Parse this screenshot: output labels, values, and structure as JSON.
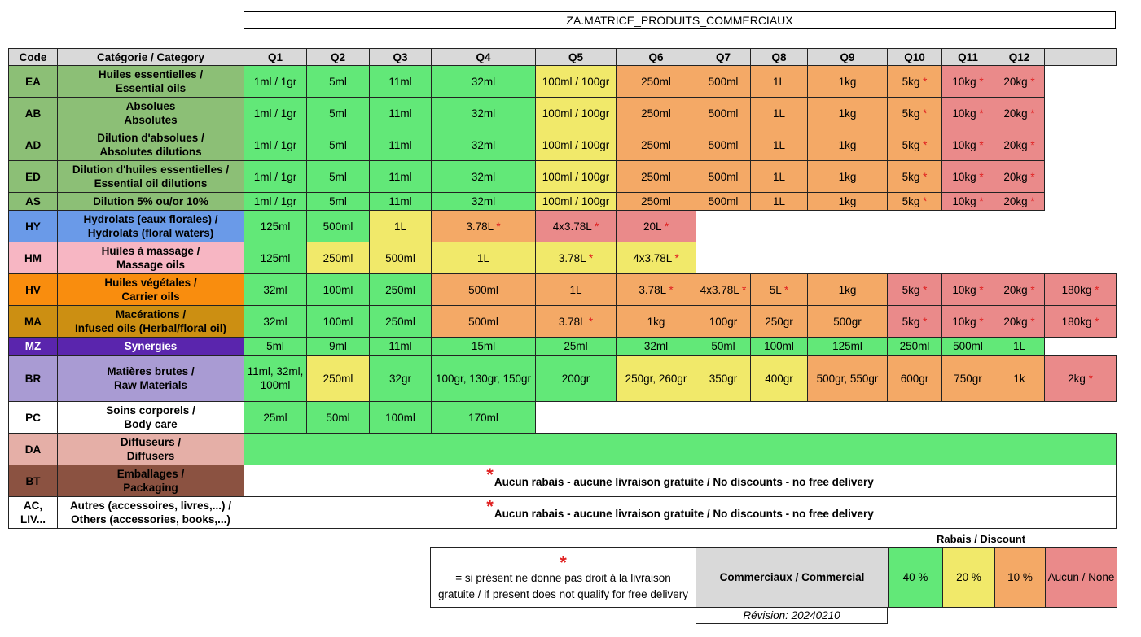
{
  "title": "ZA.MATRICE_PRODUITS_COMMERCIAUX",
  "colors": {
    "green": "#62e878",
    "yellow": "#f1e96a",
    "orange": "#f4a966",
    "red": "#ea8a8a",
    "header_gray": "#d9d9d9",
    "asterisk": "#e02020"
  },
  "headers": [
    "Code",
    "Catégorie / Category",
    "Q1",
    "Q2",
    "Q3",
    "Q4",
    "Q5",
    "Q6",
    "Q7",
    "Q8",
    "Q9",
    "Q10",
    "Q11",
    "Q12",
    ""
  ],
  "rows": [
    {
      "code": "EA",
      "code_bg": "#8cbf76",
      "cat_lines": [
        "Huiles essentielles /",
        "Essential oils"
      ],
      "cat_bg": "#8cbf76",
      "cells": [
        [
          "1ml / 1gr",
          "G"
        ],
        [
          "5ml",
          "G"
        ],
        [
          "11ml",
          "G"
        ],
        [
          "32ml",
          "G"
        ],
        [
          "100ml / 100gr",
          "Y"
        ],
        [
          "250ml",
          "O"
        ],
        [
          "500ml",
          "O"
        ],
        [
          "1L",
          "O"
        ],
        [
          "1kg",
          "O"
        ],
        [
          "5kg *",
          "O"
        ],
        [
          "10kg *",
          "R"
        ],
        [
          "20kg *",
          "R"
        ]
      ]
    },
    {
      "code": "AB",
      "code_bg": "#8cbf76",
      "cat_lines": [
        "Absolues",
        "Absolutes"
      ],
      "cat_bg": "#8cbf76",
      "cells": [
        [
          "1ml / 1gr",
          "G"
        ],
        [
          "5ml",
          "G"
        ],
        [
          "11ml",
          "G"
        ],
        [
          "32ml",
          "G"
        ],
        [
          "100ml / 100gr",
          "Y"
        ],
        [
          "250ml",
          "O"
        ],
        [
          "500ml",
          "O"
        ],
        [
          "1L",
          "O"
        ],
        [
          "1kg",
          "O"
        ],
        [
          "5kg *",
          "O"
        ],
        [
          "10kg *",
          "R"
        ],
        [
          "20kg *",
          "R"
        ]
      ]
    },
    {
      "code": "AD",
      "code_bg": "#8cbf76",
      "cat_lines": [
        "Dilution d'absolues /",
        "Absolutes dilutions"
      ],
      "cat_bg": "#8cbf76",
      "cells": [
        [
          "1ml / 1gr",
          "G"
        ],
        [
          "5ml",
          "G"
        ],
        [
          "11ml",
          "G"
        ],
        [
          "32ml",
          "G"
        ],
        [
          "100ml / 100gr",
          "Y"
        ],
        [
          "250ml",
          "O"
        ],
        [
          "500ml",
          "O"
        ],
        [
          "1L",
          "O"
        ],
        [
          "1kg",
          "O"
        ],
        [
          "5kg *",
          "O"
        ],
        [
          "10kg *",
          "R"
        ],
        [
          "20kg *",
          "R"
        ]
      ]
    },
    {
      "code": "ED",
      "code_bg": "#8cbf76",
      "cat_lines": [
        "Dilution d'huiles essentielles /",
        "Essential oil dilutions"
      ],
      "cat_bg": "#8cbf76",
      "cells": [
        [
          "1ml / 1gr",
          "G"
        ],
        [
          "5ml",
          "G"
        ],
        [
          "11ml",
          "G"
        ],
        [
          "32ml",
          "G"
        ],
        [
          "100ml / 100gr",
          "Y"
        ],
        [
          "250ml",
          "O"
        ],
        [
          "500ml",
          "O"
        ],
        [
          "1L",
          "O"
        ],
        [
          "1kg",
          "O"
        ],
        [
          "5kg *",
          "O"
        ],
        [
          "10kg *",
          "R"
        ],
        [
          "20kg *",
          "R"
        ]
      ]
    },
    {
      "code": "AS",
      "code_bg": "#8cbf76",
      "cat_lines": [
        "Dilution 5% ou/or 10%"
      ],
      "cat_bg": "#8cbf76",
      "cells": [
        [
          "1ml / 1gr",
          "G"
        ],
        [
          "5ml",
          "G"
        ],
        [
          "11ml",
          "G"
        ],
        [
          "32ml",
          "G"
        ],
        [
          "100ml / 100gr",
          "Y"
        ],
        [
          "250ml",
          "O"
        ],
        [
          "500ml",
          "O"
        ],
        [
          "1L",
          "O"
        ],
        [
          "1kg",
          "O"
        ],
        [
          "5kg *",
          "O"
        ],
        [
          "10kg *",
          "R"
        ],
        [
          "20kg *",
          "R"
        ]
      ]
    },
    {
      "code": "HY",
      "code_bg": "#6a9ae8",
      "cat_lines": [
        "Hydrolats (eaux florales) /",
        "Hydrolats (floral waters)"
      ],
      "cat_bg": "#6a9ae8",
      "cells": [
        [
          "125ml",
          "G"
        ],
        [
          "500ml",
          "G"
        ],
        [
          "1L",
          "Y"
        ],
        [
          "3.78L *",
          "O"
        ],
        [
          "4x3.78L *",
          "R"
        ],
        [
          "20L *",
          "R"
        ]
      ]
    },
    {
      "code": "HM",
      "code_bg": "#f7b6c3",
      "cat_lines": [
        "Huiles à massage /",
        "Massage oils"
      ],
      "cat_bg": "#f7b6c3",
      "cells": [
        [
          "125ml",
          "G"
        ],
        [
          "250ml",
          "Y"
        ],
        [
          "500ml",
          "Y"
        ],
        [
          "1L",
          "Y"
        ],
        [
          "3.78L *",
          "Y"
        ],
        [
          "4x3.78L *",
          "Y"
        ]
      ]
    },
    {
      "code": "HV",
      "code_bg": "#f98d0e",
      "cat_lines": [
        "Huiles végétales /",
        "Carrier oils"
      ],
      "cat_bg": "#f98d0e",
      "cells": [
        [
          "32ml",
          "G"
        ],
        [
          "100ml",
          "G"
        ],
        [
          "250ml",
          "G"
        ],
        [
          "500ml",
          "O"
        ],
        [
          "1L",
          "O"
        ],
        [
          "3.78L *",
          "O"
        ],
        [
          "4x3.78L *",
          "O"
        ],
        [
          "5L *",
          "O"
        ],
        [
          "1kg",
          "O"
        ],
        [
          "5kg *",
          "R"
        ],
        [
          "10kg *",
          "R"
        ],
        [
          "20kg *",
          "R"
        ],
        [
          "180kg *",
          "R"
        ]
      ]
    },
    {
      "code": "MA",
      "code_bg": "#cc8f12",
      "cat_lines": [
        "Macérations /",
        "Infused oils (Herbal/floral oil)"
      ],
      "cat_bg": "#cc8f12",
      "cells": [
        [
          "32ml",
          "G"
        ],
        [
          "100ml",
          "G"
        ],
        [
          "250ml",
          "G"
        ],
        [
          "500ml",
          "O"
        ],
        [
          "3.78L *",
          "O"
        ],
        [
          "1kg",
          "O"
        ],
        [
          "100gr",
          "O"
        ],
        [
          "250gr",
          "O"
        ],
        [
          "500gr",
          "O"
        ],
        [
          "5kg *",
          "R"
        ],
        [
          "10kg *",
          "R"
        ],
        [
          "20kg *",
          "R"
        ],
        [
          "180kg *",
          "R"
        ]
      ]
    },
    {
      "code": "MZ",
      "code_bg": "#5a25ad",
      "cat_lines": [
        "Synergies"
      ],
      "cat_bg": "#5a25ad",
      "light": true,
      "cells": [
        [
          "5ml",
          "G"
        ],
        [
          "9ml",
          "G"
        ],
        [
          "11ml",
          "G"
        ],
        [
          "15ml",
          "G"
        ],
        [
          "25ml",
          "G"
        ],
        [
          "32ml",
          "G"
        ],
        [
          "50ml",
          "G"
        ],
        [
          "100ml",
          "G"
        ],
        [
          "125ml",
          "G"
        ],
        [
          "250ml",
          "G"
        ],
        [
          "500ml",
          "G"
        ],
        [
          "1L",
          "G"
        ]
      ]
    },
    {
      "code": "BR",
      "code_bg": "#a99bd3",
      "cat_lines": [
        "Matières brutes /",
        "Raw Materials"
      ],
      "cat_bg": "#a99bd3",
      "cells": [
        [
          "11ml, 32ml, 100ml",
          "G"
        ],
        [
          "250ml",
          "Y"
        ],
        [
          "32gr",
          "G"
        ],
        [
          "100gr, 130gr, 150gr",
          "G"
        ],
        [
          "200gr",
          "G"
        ],
        [
          "250gr, 260gr",
          "Y"
        ],
        [
          "350gr",
          "Y"
        ],
        [
          "400gr",
          "Y"
        ],
        [
          "500gr, 550gr",
          "O"
        ],
        [
          "600gr",
          "O"
        ],
        [
          "750gr",
          "O"
        ],
        [
          "1k",
          "O"
        ],
        [
          "2kg *",
          "R"
        ]
      ]
    },
    {
      "code": "PC",
      "code_bg": "#ffffff",
      "cat_lines": [
        "Soins corporels /",
        "Body care"
      ],
      "cat_bg": "#ffffff",
      "cells": [
        [
          "25ml",
          "G"
        ],
        [
          "50ml",
          "G"
        ],
        [
          "100ml",
          "G"
        ],
        [
          "170ml",
          "G"
        ]
      ]
    },
    {
      "code": "DA",
      "code_bg": "#e5afa7",
      "cat_lines": [
        "Diffuseurs /",
        "Diffusers"
      ],
      "cat_bg": "#e5afa7",
      "span_green": true
    },
    {
      "code": "BT",
      "code_bg": "#8b5241",
      "cat_lines": [
        "Emballages /",
        "Packaging"
      ],
      "cat_bg": "#8b5241",
      "note": "Aucun rabais - aucune livraison gratuite / No discounts - no free delivery"
    },
    {
      "code": "AC, LIV...",
      "code_bg": "#ffffff",
      "cat_lines": [
        "Autres (accessoires, livres,...) /",
        "Others (accessories, books,...)"
      ],
      "cat_bg": "#ffffff",
      "note": "Aucun rabais - aucune livraison gratuite / No discounts - no free delivery"
    }
  ],
  "discount": {
    "title": "Rabais / Discount",
    "note_line1": "= si présent ne donne pas droit à la livraison",
    "note_line2": "gratuite / if present does not qualify for free delivery",
    "asterisk": "*",
    "commercial_label": "Commerciaux / Commercial",
    "levels": [
      {
        "label": "40 %",
        "color": "#62e878"
      },
      {
        "label": "20 %",
        "color": "#f1e96a"
      },
      {
        "label": "10 %",
        "color": "#f4a966"
      },
      {
        "label": "Aucun / None",
        "color": "#ea8a8a"
      }
    ],
    "revision": "Révision: 20240210"
  }
}
